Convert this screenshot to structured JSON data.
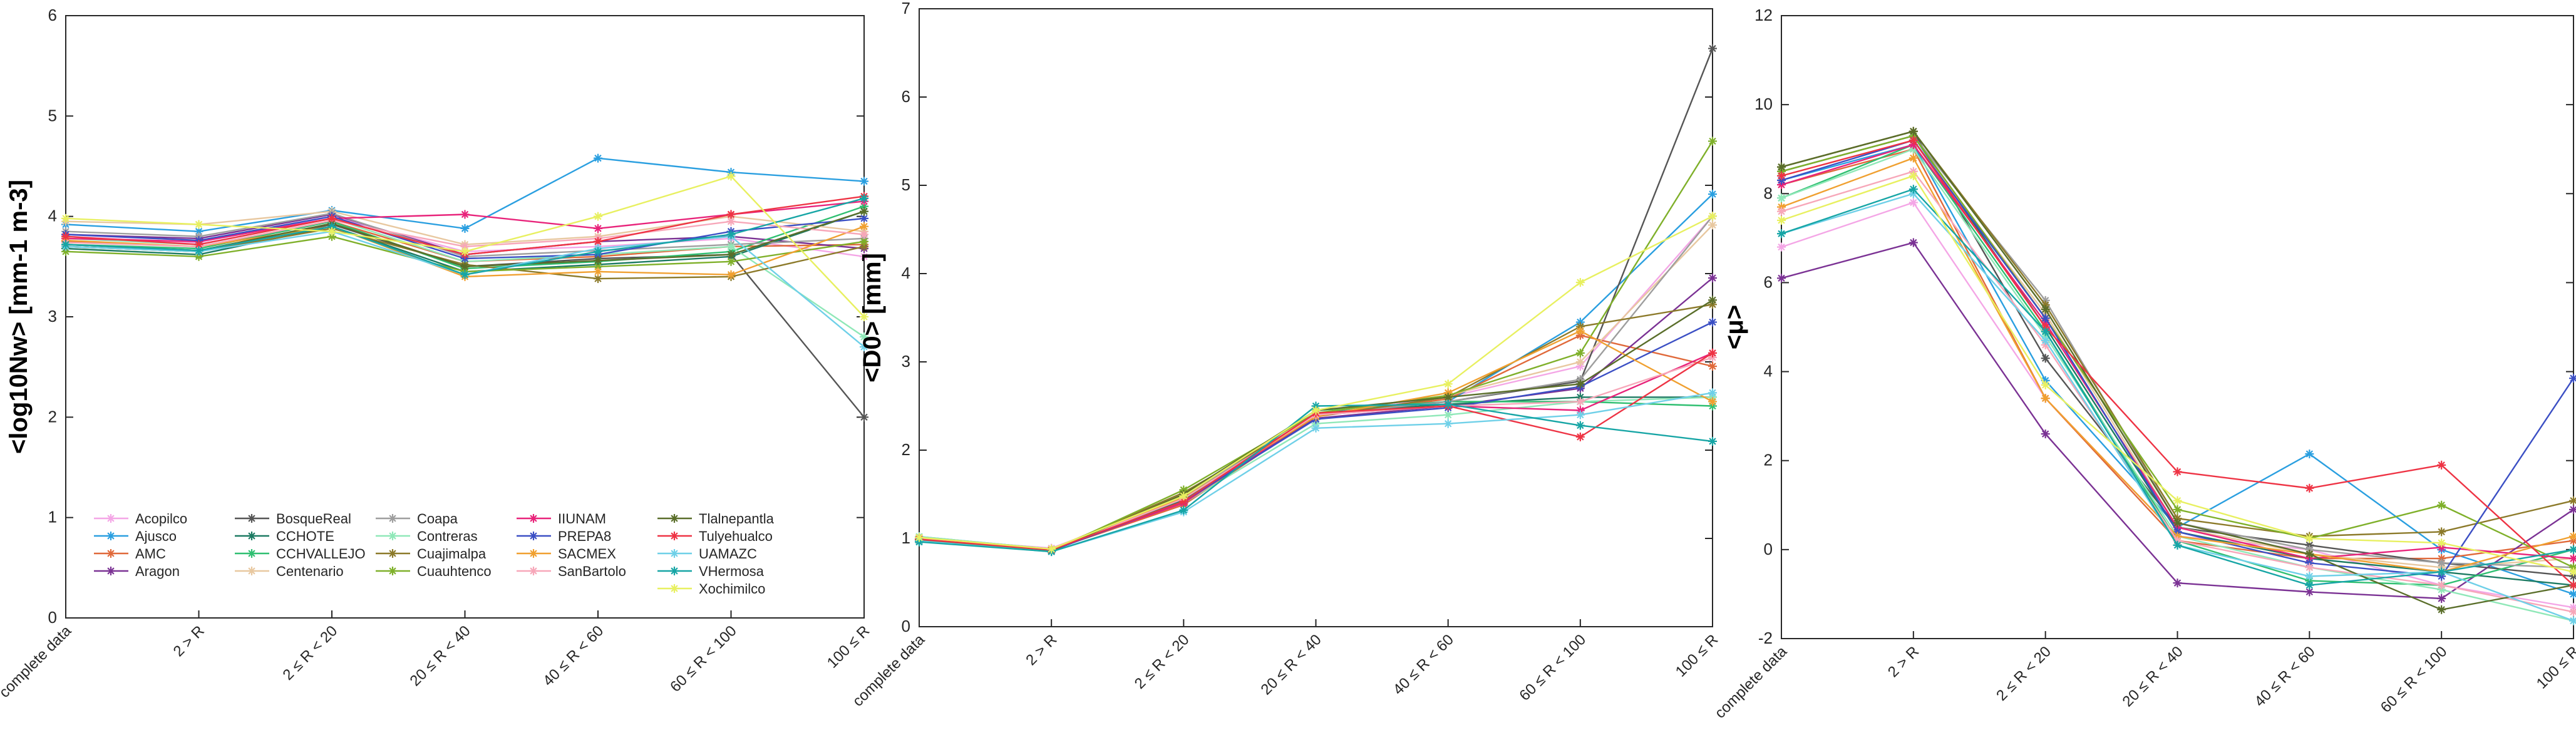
{
  "figure": {
    "x_categories": [
      "complete data",
      "2 > R",
      "2 ≤ R < 20",
      "20 ≤ R < 40",
      "40 ≤ R < 60",
      "60 ≤ R < 100",
      "100 ≤ R"
    ],
    "stations": [
      {
        "name": "Acopilco",
        "color": "#f4a6e6",
        "marker": "asterisk"
      },
      {
        "name": "Ajusco",
        "color": "#2a9fe0",
        "marker": "asterisk"
      },
      {
        "name": "AMC",
        "color": "#e0693a",
        "marker": "asterisk"
      },
      {
        "name": "Aragon",
        "color": "#7b3294",
        "marker": "asterisk"
      },
      {
        "name": "BosqueReal",
        "color": "#555555",
        "marker": "asterisk"
      },
      {
        "name": "CCHOTE",
        "color": "#1c7a62",
        "marker": "asterisk"
      },
      {
        "name": "CCHVALLEJO",
        "color": "#2fbf71",
        "marker": "asterisk"
      },
      {
        "name": "Centenario",
        "color": "#e8c8a0",
        "marker": "asterisk"
      },
      {
        "name": "Coapa",
        "color": "#9e9e9e",
        "marker": "asterisk"
      },
      {
        "name": "Contreras",
        "color": "#8fe8b8",
        "marker": "asterisk"
      },
      {
        "name": "Cuajimalpa",
        "color": "#8c7a2a",
        "marker": "asterisk"
      },
      {
        "name": "Cuauhtenco",
        "color": "#7fb02a",
        "marker": "asterisk"
      },
      {
        "name": "IIUNAM",
        "color": "#e8237a",
        "marker": "asterisk"
      },
      {
        "name": "PREPA8",
        "color": "#3b4fc4",
        "marker": "asterisk"
      },
      {
        "name": "SACMEX",
        "color": "#f0a030",
        "marker": "asterisk"
      },
      {
        "name": "SanBartolo",
        "color": "#f7a7b9",
        "marker": "asterisk"
      },
      {
        "name": "Tlalnepantla",
        "color": "#5a6e2a",
        "marker": "asterisk"
      },
      {
        "name": "Tulyehualco",
        "color": "#ee3344",
        "marker": "asterisk"
      },
      {
        "name": "UAMAZC",
        "color": "#6fd0e8",
        "marker": "asterisk"
      },
      {
        "name": "VHermosa",
        "color": "#16a5a5",
        "marker": "asterisk"
      },
      {
        "name": "Xochimilco",
        "color": "#e8f060",
        "marker": "asterisk"
      }
    ]
  },
  "chart_data": [
    {
      "type": "line",
      "ylabel": "<log10Nw> [mm-1 m-3]",
      "ylim": [
        0,
        6
      ],
      "yticks": [
        0,
        1,
        2,
        3,
        4,
        5,
        6
      ],
      "legend_position": "bottom-left",
      "series": [
        {
          "name": "Acopilco",
          "values": [
            3.8,
            3.74,
            4.0,
            3.65,
            3.7,
            3.78,
            3.6
          ]
        },
        {
          "name": "Ajusco",
          "values": [
            3.92,
            3.85,
            4.06,
            3.88,
            4.58,
            4.44,
            4.35
          ]
        },
        {
          "name": "AMC",
          "values": [
            3.75,
            3.7,
            3.95,
            3.55,
            3.6,
            3.7,
            3.72
          ]
        },
        {
          "name": "Aragon",
          "values": [
            3.82,
            3.78,
            4.02,
            3.62,
            3.75,
            3.8,
            3.68
          ]
        },
        {
          "name": "BosqueReal",
          "values": [
            3.7,
            3.65,
            3.92,
            3.5,
            3.58,
            3.62,
            2.0
          ]
        },
        {
          "name": "CCHOTE",
          "values": [
            3.68,
            3.62,
            3.9,
            3.45,
            3.52,
            3.6,
            4.05
          ]
        },
        {
          "name": "CCHVALLEJO",
          "values": [
            3.72,
            3.68,
            3.95,
            3.48,
            3.55,
            3.65,
            4.1
          ]
        },
        {
          "name": "Centenario",
          "values": [
            3.95,
            3.92,
            4.05,
            3.72,
            3.8,
            4.0,
            3.85
          ]
        },
        {
          "name": "Coapa",
          "values": [
            3.85,
            3.8,
            4.03,
            3.6,
            3.66,
            3.72,
            3.78
          ]
        },
        {
          "name": "Contreras",
          "values": [
            3.78,
            3.72,
            3.98,
            3.55,
            3.62,
            3.7,
            2.8
          ]
        },
        {
          "name": "Cuajimalpa",
          "values": [
            3.7,
            3.65,
            3.88,
            3.52,
            3.38,
            3.4,
            3.7
          ]
        },
        {
          "name": "Cuauhtenco",
          "values": [
            3.65,
            3.6,
            3.8,
            3.45,
            3.5,
            3.55,
            3.75
          ]
        },
        {
          "name": "IIUNAM",
          "values": [
            3.78,
            3.75,
            3.98,
            4.02,
            3.88,
            4.02,
            4.15
          ]
        },
        {
          "name": "PREPA8",
          "values": [
            3.82,
            3.76,
            4.0,
            3.58,
            3.62,
            3.85,
            3.98
          ]
        },
        {
          "name": "SACMEX",
          "values": [
            3.76,
            3.7,
            3.9,
            3.4,
            3.45,
            3.42,
            3.9
          ]
        },
        {
          "name": "SanBartolo",
          "values": [
            3.74,
            3.7,
            3.96,
            3.7,
            3.78,
            3.95,
            3.82
          ]
        },
        {
          "name": "Tlalnepantla",
          "values": [
            3.72,
            3.66,
            3.93,
            3.5,
            3.56,
            3.62,
            4.05
          ]
        },
        {
          "name": "Tulyehualco",
          "values": [
            3.8,
            3.72,
            3.98,
            3.62,
            3.75,
            4.02,
            4.2
          ]
        },
        {
          "name": "UAMAZC",
          "values": [
            3.7,
            3.65,
            3.85,
            3.42,
            3.68,
            3.8,
            2.7
          ]
        },
        {
          "name": "VHermosa",
          "values": [
            3.72,
            3.66,
            3.9,
            3.42,
            3.65,
            3.82,
            4.18
          ]
        },
        {
          "name": "Xochimilco",
          "values": [
            3.98,
            3.92,
            3.85,
            3.65,
            4.0,
            4.4,
            3.0
          ]
        }
      ]
    },
    {
      "type": "line",
      "ylabel": "<D0> [mm]",
      "ylim": [
        0,
        7
      ],
      "yticks": [
        0,
        1,
        2,
        3,
        4,
        5,
        6,
        7
      ],
      "series": [
        {
          "name": "Acopilco",
          "values": [
            1.0,
            0.89,
            1.45,
            2.4,
            2.6,
            2.95,
            4.65
          ]
        },
        {
          "name": "Ajusco",
          "values": [
            1.02,
            0.88,
            1.4,
            2.42,
            2.55,
            3.45,
            4.9
          ]
        },
        {
          "name": "AMC",
          "values": [
            1.01,
            0.87,
            1.38,
            2.38,
            2.58,
            3.3,
            2.95
          ]
        },
        {
          "name": "Aragon",
          "values": [
            0.98,
            0.86,
            1.42,
            2.36,
            2.5,
            2.7,
            3.95
          ]
        },
        {
          "name": "BosqueReal",
          "values": [
            0.97,
            0.86,
            1.45,
            2.4,
            2.55,
            2.78,
            6.55
          ]
        },
        {
          "name": "CCHOTE",
          "values": [
            0.98,
            0.86,
            1.44,
            2.42,
            2.52,
            2.6,
            2.6
          ]
        },
        {
          "name": "CCHVALLEJO",
          "values": [
            0.97,
            0.86,
            1.46,
            2.45,
            2.55,
            2.55,
            2.5
          ]
        },
        {
          "name": "Centenario",
          "values": [
            1.0,
            0.88,
            1.5,
            2.42,
            2.62,
            3.0,
            4.55
          ]
        },
        {
          "name": "Coapa",
          "values": [
            0.99,
            0.87,
            1.48,
            2.4,
            2.55,
            2.8,
            4.65
          ]
        },
        {
          "name": "Contreras",
          "values": [
            1.02,
            0.88,
            1.4,
            2.3,
            2.4,
            2.55,
            2.6
          ]
        },
        {
          "name": "Cuajimalpa",
          "values": [
            1.0,
            0.87,
            1.52,
            2.38,
            2.6,
            3.4,
            3.65
          ]
        },
        {
          "name": "Cuauhtenco",
          "values": [
            0.98,
            0.86,
            1.55,
            2.42,
            2.62,
            3.1,
            5.5
          ]
        },
        {
          "name": "IIUNAM",
          "values": [
            0.99,
            0.87,
            1.4,
            2.4,
            2.5,
            2.45,
            3.1
          ]
        },
        {
          "name": "PREPA8",
          "values": [
            0.98,
            0.86,
            1.42,
            2.35,
            2.48,
            2.72,
            3.45
          ]
        },
        {
          "name": "SACMEX",
          "values": [
            1.01,
            0.88,
            1.46,
            2.38,
            2.65,
            3.35,
            2.55
          ]
        },
        {
          "name": "SanBartolo",
          "values": [
            1.0,
            0.87,
            1.45,
            2.4,
            2.5,
            2.55,
            3.05
          ]
        },
        {
          "name": "Tlalnepantla",
          "values": [
            0.98,
            0.86,
            1.5,
            2.45,
            2.6,
            2.75,
            3.7
          ]
        },
        {
          "name": "Tulyehualco",
          "values": [
            0.99,
            0.87,
            1.42,
            2.42,
            2.5,
            2.15,
            3.1
          ]
        },
        {
          "name": "UAMAZC",
          "values": [
            0.97,
            0.85,
            1.3,
            2.25,
            2.3,
            2.4,
            2.65
          ]
        },
        {
          "name": "VHermosa",
          "values": [
            0.96,
            0.85,
            1.32,
            2.5,
            2.52,
            2.28,
            2.1
          ]
        },
        {
          "name": "Xochimilco",
          "values": [
            1.01,
            0.88,
            1.48,
            2.45,
            2.75,
            3.9,
            4.65
          ]
        }
      ]
    },
    {
      "type": "line",
      "ylabel": "<μ>",
      "ylim": [
        -2,
        12
      ],
      "yticks": [
        -2,
        0,
        2,
        4,
        6,
        8,
        10,
        12
      ],
      "series": [
        {
          "name": "Acopilco",
          "values": [
            6.8,
            7.8,
            3.4,
            0.3,
            0.0,
            -0.8,
            -1.3
          ]
        },
        {
          "name": "Ajusco",
          "values": [
            8.3,
            9.1,
            3.8,
            0.5,
            2.15,
            0.0,
            -1.0
          ]
        },
        {
          "name": "AMC",
          "values": [
            8.2,
            9.0,
            3.4,
            0.2,
            -0.2,
            -0.2,
            0.2
          ]
        },
        {
          "name": "Aragon",
          "values": [
            6.1,
            6.9,
            2.6,
            -0.75,
            -0.95,
            -1.1,
            0.9
          ]
        },
        {
          "name": "BosqueReal",
          "values": [
            8.6,
            9.4,
            4.3,
            0.5,
            0.1,
            -0.3,
            -0.6
          ]
        },
        {
          "name": "CCHOTE",
          "values": [
            8.5,
            9.3,
            5.0,
            0.4,
            -0.2,
            -0.5,
            -0.8
          ]
        },
        {
          "name": "CCHVALLEJO",
          "values": [
            7.9,
            9.1,
            4.9,
            0.2,
            -0.7,
            -0.8,
            0.0
          ]
        },
        {
          "name": "Centenario",
          "values": [
            8.4,
            9.2,
            5.3,
            0.5,
            -0.1,
            -0.4,
            -0.2
          ]
        },
        {
          "name": "Coapa",
          "values": [
            8.5,
            9.3,
            5.6,
            0.6,
            0.0,
            -0.3,
            -0.4
          ]
        },
        {
          "name": "Contreras",
          "values": [
            7.9,
            9.0,
            4.8,
            0.3,
            -0.4,
            -0.9,
            -1.6
          ]
        },
        {
          "name": "Cuajimalpa",
          "values": [
            8.6,
            9.4,
            5.5,
            0.7,
            0.3,
            0.4,
            1.1
          ]
        },
        {
          "name": "Cuauhtenco",
          "values": [
            8.5,
            9.3,
            5.2,
            0.9,
            0.25,
            1.0,
            -0.4
          ]
        },
        {
          "name": "IIUNAM",
          "values": [
            8.2,
            9.1,
            5.1,
            0.5,
            -0.2,
            0.05,
            -0.2
          ]
        },
        {
          "name": "PREPA8",
          "values": [
            8.3,
            9.2,
            5.2,
            0.4,
            -0.3,
            -0.6,
            3.85
          ]
        },
        {
          "name": "SACMEX",
          "values": [
            7.7,
            8.8,
            3.4,
            0.3,
            -0.1,
            -0.5,
            0.3
          ]
        },
        {
          "name": "SanBartolo",
          "values": [
            7.6,
            8.5,
            4.6,
            0.2,
            -0.4,
            -0.8,
            -1.4
          ]
        },
        {
          "name": "Tlalnepantla",
          "values": [
            8.6,
            9.4,
            5.4,
            0.6,
            -0.1,
            -1.35,
            -0.8
          ]
        },
        {
          "name": "Tulyehualco",
          "values": [
            8.4,
            9.2,
            5.0,
            1.75,
            1.38,
            1.9,
            -0.8
          ]
        },
        {
          "name": "UAMAZC",
          "values": [
            7.1,
            8.0,
            4.7,
            0.1,
            -0.6,
            -0.5,
            -1.6
          ]
        },
        {
          "name": "VHermosa",
          "values": [
            7.1,
            8.1,
            4.9,
            0.1,
            -0.8,
            -0.5,
            0.0
          ]
        },
        {
          "name": "Xochimilco",
          "values": [
            7.4,
            8.4,
            3.7,
            1.1,
            0.25,
            0.15,
            -0.5
          ]
        }
      ]
    }
  ]
}
